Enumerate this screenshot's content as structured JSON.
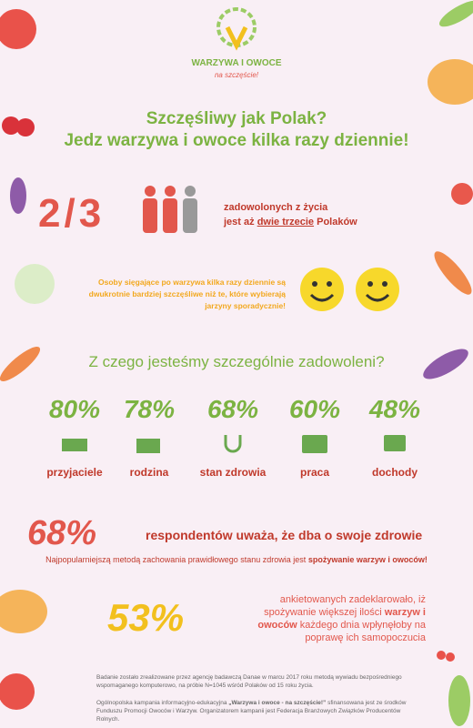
{
  "logo": {
    "name": "WARZYWA I OWOCE",
    "tagline": "na szczęście!"
  },
  "title": {
    "line1": "Szczęśliwy jak Polak?",
    "line2": "Jedz warzywa i owoce kilka razy dziennie!"
  },
  "stat_fraction": {
    "value": "2/3",
    "text1": "zadowolonych z życia",
    "text2a": "jest aż ",
    "text2b": "dwie trzecie",
    "text2c": " Polaków"
  },
  "smiles": {
    "text": "Osoby sięgające po warzywa kilka razy dziennie są dwukrotnie bardziej szczęśliwe niż te, które wybierają jarzyny sporadycznie!"
  },
  "question": "Z czego jesteśmy szczególnie zadowoleni?",
  "items": [
    {
      "percent": "80%",
      "label": "przyjaciele"
    },
    {
      "percent": "78%",
      "label": "rodzina"
    },
    {
      "percent": "68%",
      "label": "stan zdrowia"
    },
    {
      "percent": "60%",
      "label": "praca"
    },
    {
      "percent": "48%",
      "label": "dochody"
    }
  ],
  "health": {
    "percent": "68%",
    "text": "respondentów uważa, że dba o swoje zdrowie",
    "note_a": "Najpopularniejszą metodą zachowania prawidłowego stanu zdrowia jest ",
    "note_b": "spożywanie warzyw i owoców!"
  },
  "stat53": {
    "percent": "53%",
    "text_a": "ankietowanych zadeklarowało, iż spożywanie większej ilości ",
    "text_b": "warzyw i owoców",
    "text_c": " każdego dnia wpłynęłoby na poprawę ich samopoczucia"
  },
  "footer": {
    "study": "Badanie zostało zrealizowane przez agencję badawczą Danae w marcu 2017 roku metodą wywiadu bezpośredniego wspomaganego komputerowo, na próbie N=1045 wśród Polaków od 15 roku życia.",
    "campaign_a": "Ogólnopolska kampania informacyjno-edukacyjna ",
    "campaign_b": "„Warzywa i owoce - na szczęście!”",
    "campaign_c": " sfinansowana jest ze środków Funduszu Promocji Owoców i Warzyw. Organizatorem kampanii jest Federacja Branżowych Związków Producentów Rolnych."
  }
}
